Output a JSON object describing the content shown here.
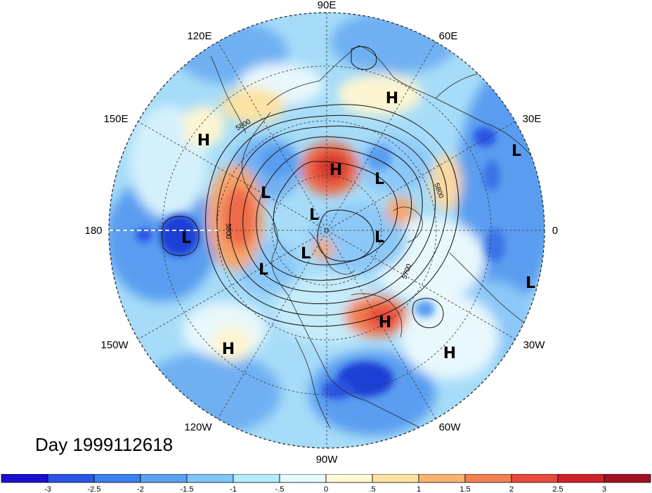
{
  "title": "Day 1999112618",
  "map": {
    "projection": "polar-stereographic-north",
    "fill_colors": {
      "deep_blue": "#1f3fd6",
      "blue": "#3a73e6",
      "mid_blue": "#5a9df0",
      "light_blue": "#8cc8f7",
      "pale_blue": "#c5ecfb",
      "white_blue": "#e8f8fc",
      "pale_yellow": "#fdf5d2",
      "tan": "#fbd9a0",
      "orange": "#f6a56a",
      "red_orange": "#ee6b4a",
      "red": "#d8352a"
    },
    "longitude_labels": [
      {
        "text": "90E"
      },
      {
        "text": "60E"
      },
      {
        "text": "30E"
      },
      {
        "text": "0"
      },
      {
        "text": "30W"
      },
      {
        "text": "60W"
      },
      {
        "text": "90W"
      },
      {
        "text": "120W"
      },
      {
        "text": "150W"
      },
      {
        "text": "180"
      },
      {
        "text": "150E"
      },
      {
        "text": "120E"
      }
    ],
    "pressure_centers": [
      "H",
      "H",
      "L",
      "H",
      "L",
      "L",
      "L",
      "L",
      "L",
      "L",
      "H",
      "H",
      "L",
      "L",
      "H"
    ],
    "contour_labels": [
      "5800",
      "5800",
      "5800",
      "5700"
    ]
  },
  "colorbar": {
    "colors": [
      "#1a0fd0",
      "#2a55e4",
      "#3a80ee",
      "#5aa3f3",
      "#7ec6f8",
      "#b5ecfb",
      "#e6fbfd",
      "#fef9d4",
      "#fde3a3",
      "#f9b470",
      "#f3804f",
      "#e94a3c",
      "#cf2329",
      "#a3121f"
    ],
    "ticks": [
      "-3",
      "-2.5",
      "-2",
      "-1.5",
      "-1",
      "-.5",
      "0",
      ".5",
      "1",
      "1.5",
      "2",
      "2.5",
      "3"
    ]
  }
}
